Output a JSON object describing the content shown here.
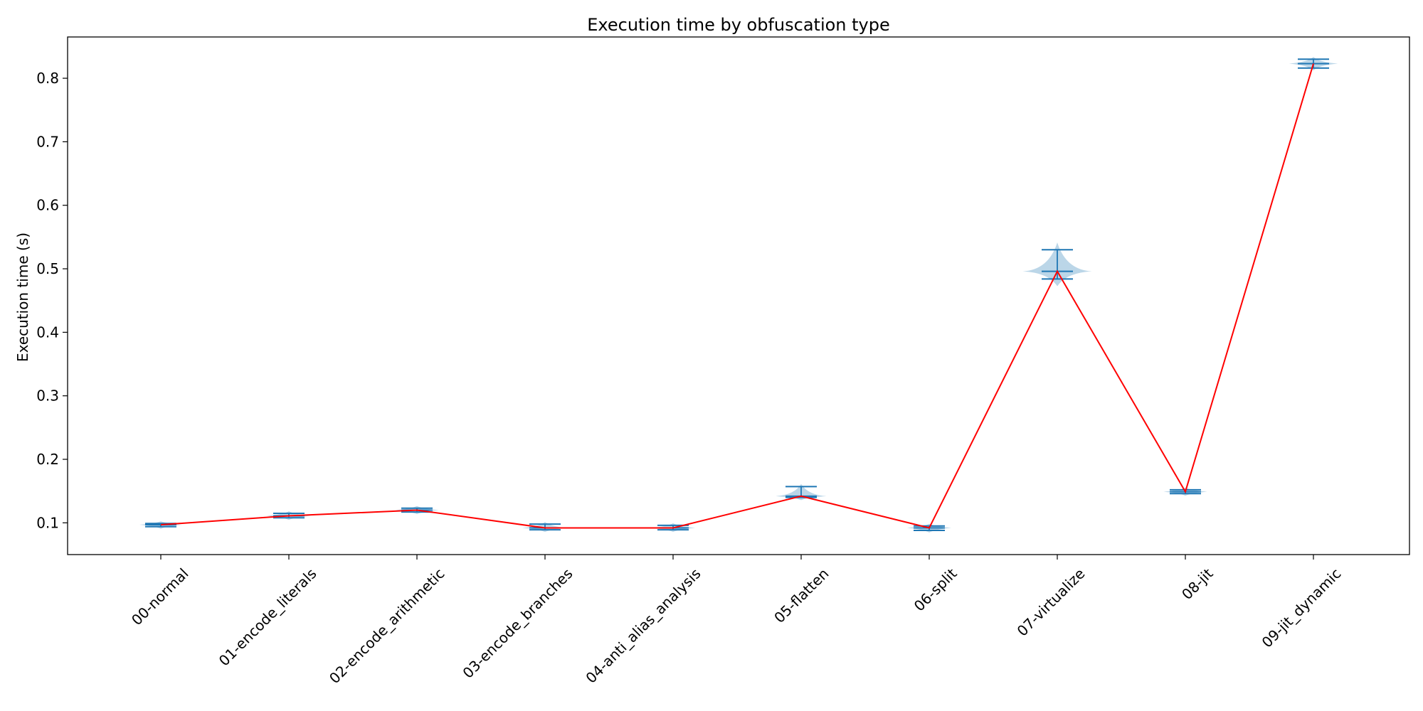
{
  "chart_data": {
    "type": "violin",
    "title": "Execution time by obfuscation type",
    "xlabel": "",
    "ylabel": "Execution time (s)",
    "ylim": [
      0.05,
      0.865
    ],
    "yticks": [
      0.1,
      0.2,
      0.3,
      0.4,
      0.5,
      0.6,
      0.7,
      0.8
    ],
    "grid": false,
    "categories": [
      "00-normal",
      "01-encode_literals",
      "02-encode_arithmetic",
      "03-encode_branches",
      "04-anti_alias_analysis",
      "05-flatten",
      "06-split",
      "07-virtualize",
      "08-jit",
      "09-jit_dynamic"
    ],
    "distributions": [
      {
        "min": 0.094,
        "max": 0.099,
        "mean": 0.097
      },
      {
        "min": 0.108,
        "max": 0.115,
        "mean": 0.111
      },
      {
        "min": 0.117,
        "max": 0.123,
        "mean": 0.12
      },
      {
        "min": 0.089,
        "max": 0.098,
        "mean": 0.092
      },
      {
        "min": 0.089,
        "max": 0.096,
        "mean": 0.092
      },
      {
        "min": 0.14,
        "max": 0.157,
        "mean": 0.142
      },
      {
        "min": 0.088,
        "max": 0.095,
        "mean": 0.092
      },
      {
        "min": 0.484,
        "max": 0.53,
        "mean": 0.496
      },
      {
        "min": 0.146,
        "max": 0.152,
        "mean": 0.149
      },
      {
        "min": 0.816,
        "max": 0.83,
        "mean": 0.823
      }
    ],
    "mean_line": [
      0.097,
      0.111,
      0.12,
      0.092,
      0.092,
      0.142,
      0.092,
      0.496,
      0.149,
      0.823
    ],
    "colors": {
      "violin_fill": "#1f77b4",
      "whisker": "#1f77b4",
      "mean_line": "#ff0000",
      "axes": "#000000"
    }
  }
}
